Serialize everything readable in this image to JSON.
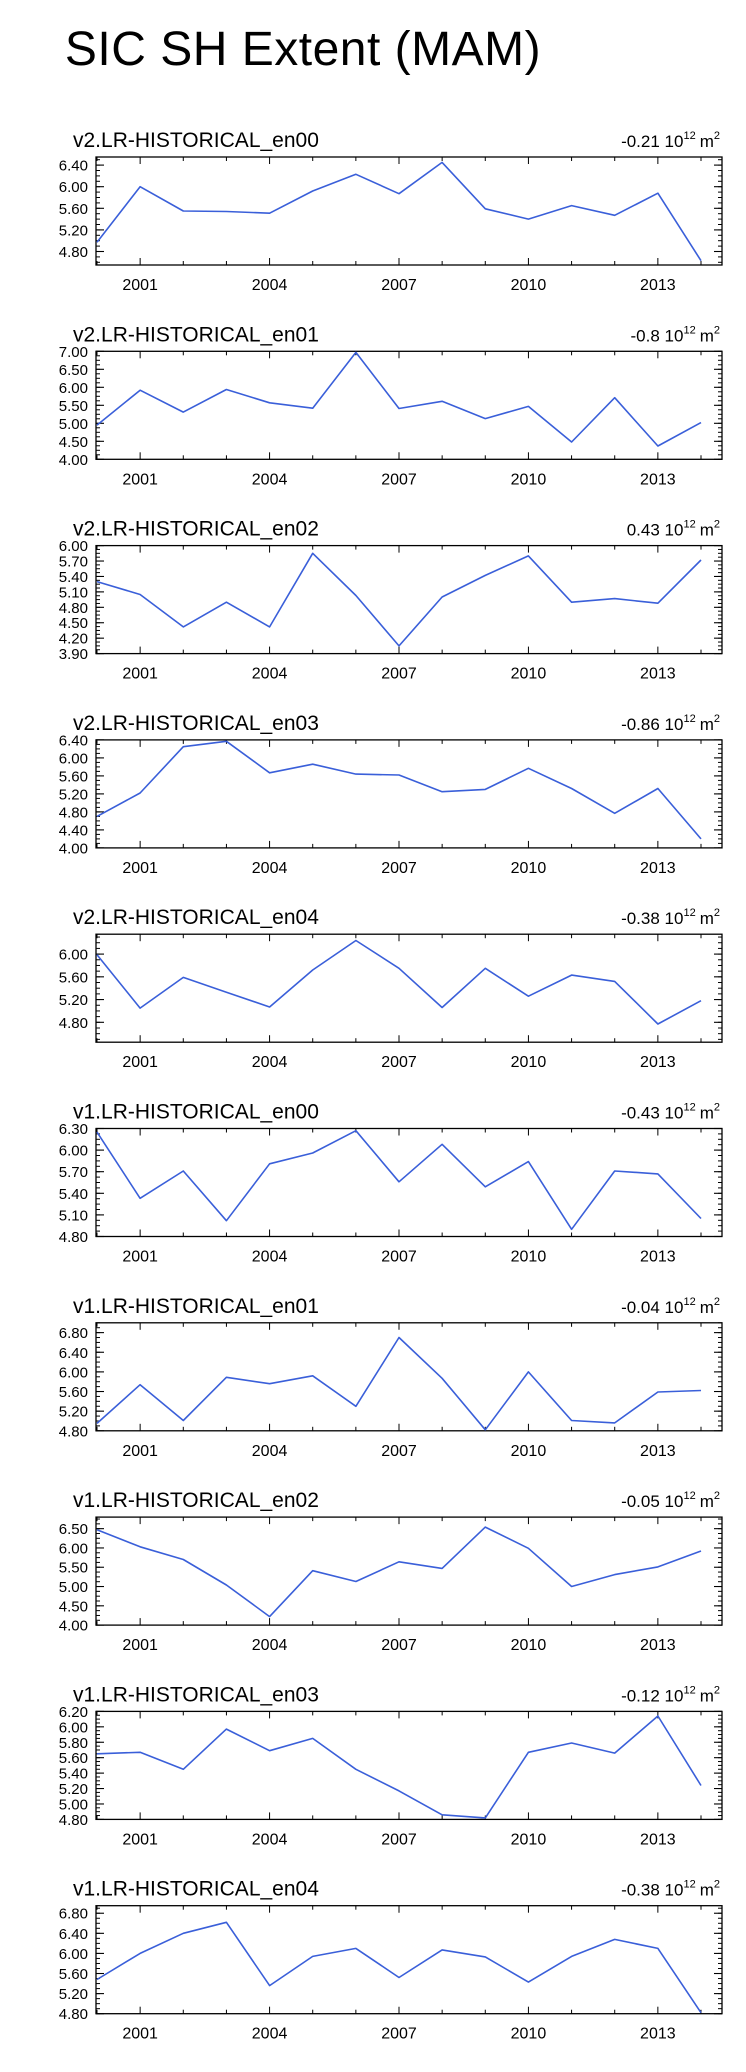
{
  "title": "SIC SH Extent (MAM)",
  "colors": {
    "line": "#3a5fd9",
    "axis": "#000000"
  },
  "years": [
    2000,
    2001,
    2002,
    2003,
    2004,
    2005,
    2006,
    2007,
    2008,
    2009,
    2010,
    2011,
    2012,
    2013,
    2014
  ],
  "x_ticks": [
    "2001",
    "2004",
    "2007",
    "2010",
    "2013"
  ],
  "trend_unit_base": "10",
  "trend_unit_exp": "12",
  "trend_unit_suffix": "m",
  "trend_unit_suffix_exp": "2",
  "chart_data": [
    {
      "type": "line",
      "title": "v2.LR-HISTORICAL_en00",
      "trend": "-0.21",
      "ylim": [
        4.55,
        6.55
      ],
      "yticks": [
        "4.80",
        "5.20",
        "5.60",
        "6.00",
        "6.40"
      ],
      "values": [
        4.97,
        6.0,
        5.55,
        5.54,
        5.51,
        5.92,
        6.23,
        5.87,
        6.45,
        5.59,
        5.4,
        5.65,
        5.47,
        5.88,
        4.63
      ]
    },
    {
      "type": "line",
      "title": "v2.LR-HISTORICAL_en01",
      "trend": "-0.8",
      "ylim": [
        4.0,
        7.0
      ],
      "yticks": [
        "4.00",
        "4.50",
        "5.00",
        "5.50",
        "6.00",
        "6.50",
        "7.00"
      ],
      "values": [
        4.95,
        5.92,
        5.31,
        5.94,
        5.57,
        5.42,
        6.97,
        5.41,
        5.61,
        5.13,
        5.47,
        4.48,
        5.71,
        4.37,
        5.02
      ]
    },
    {
      "type": "line",
      "title": "v2.LR-HISTORICAL_en02",
      "trend": "0.43",
      "ylim": [
        3.9,
        6.0
      ],
      "yticks": [
        "3.90",
        "4.20",
        "4.50",
        "4.80",
        "5.10",
        "5.40",
        "5.70",
        "6.00"
      ],
      "values": [
        5.3,
        5.05,
        4.42,
        4.9,
        4.42,
        5.85,
        5.03,
        4.05,
        5.0,
        5.42,
        5.8,
        4.9,
        4.97,
        4.88,
        5.72
      ]
    },
    {
      "type": "line",
      "title": "v2.LR-HISTORICAL_en03",
      "trend": "-0.86",
      "ylim": [
        4.0,
        6.4
      ],
      "yticks": [
        "4.00",
        "4.40",
        "4.80",
        "5.20",
        "5.60",
        "6.00",
        "6.40"
      ],
      "values": [
        4.7,
        5.22,
        6.25,
        6.37,
        5.67,
        5.86,
        5.64,
        5.62,
        5.25,
        5.3,
        5.77,
        5.32,
        4.77,
        5.32,
        4.2
      ]
    },
    {
      "type": "line",
      "title": "v2.LR-HISTORICAL_en04",
      "trend": "-0.38",
      "ylim": [
        4.45,
        6.35
      ],
      "yticks": [
        "4.80",
        "5.20",
        "5.60",
        "6.00"
      ],
      "values": [
        5.99,
        5.05,
        5.59,
        5.33,
        5.07,
        5.72,
        6.24,
        5.75,
        5.06,
        5.75,
        5.26,
        5.63,
        5.52,
        4.77,
        5.18
      ]
    },
    {
      "type": "line",
      "title": "v1.LR-HISTORICAL_en00",
      "trend": "-0.43",
      "ylim": [
        4.8,
        6.3
      ],
      "yticks": [
        "4.80",
        "5.10",
        "5.40",
        "5.70",
        "6.00",
        "6.30"
      ],
      "values": [
        6.25,
        5.33,
        5.71,
        5.02,
        5.81,
        5.96,
        6.27,
        5.56,
        6.08,
        5.49,
        5.84,
        4.9,
        5.71,
        5.67,
        5.05
      ]
    },
    {
      "type": "line",
      "title": "v1.LR-HISTORICAL_en01",
      "trend": "-0.04",
      "ylim": [
        4.8,
        7.0
      ],
      "yticks": [
        "4.80",
        "5.20",
        "5.60",
        "6.00",
        "6.40",
        "6.80"
      ],
      "values": [
        4.95,
        5.74,
        5.01,
        5.89,
        5.76,
        5.92,
        5.3,
        6.7,
        5.87,
        4.82,
        6.0,
        5.01,
        4.96,
        5.59,
        5.62
      ]
    },
    {
      "type": "line",
      "title": "v1.LR-HISTORICAL_en02",
      "trend": "-0.05",
      "ylim": [
        4.0,
        6.8
      ],
      "yticks": [
        "4.00",
        "4.50",
        "5.00",
        "5.50",
        "6.00",
        "6.50"
      ],
      "values": [
        6.47,
        6.03,
        5.7,
        5.04,
        4.22,
        5.41,
        5.13,
        5.64,
        5.47,
        6.54,
        5.99,
        5.0,
        5.31,
        5.51,
        5.92
      ]
    },
    {
      "type": "line",
      "title": "v1.LR-HISTORICAL_en03",
      "trend": "-0.12",
      "ylim": [
        4.8,
        6.2
      ],
      "yticks": [
        "4.80",
        "5.00",
        "5.20",
        "5.40",
        "5.60",
        "5.80",
        "6.00",
        "6.20"
      ],
      "values": [
        5.65,
        5.67,
        5.45,
        5.97,
        5.69,
        5.85,
        5.45,
        5.17,
        4.86,
        4.82,
        5.67,
        5.79,
        5.66,
        6.14,
        5.24
      ]
    },
    {
      "type": "line",
      "title": "v1.LR-HISTORICAL_en04",
      "trend": "-0.38",
      "ylim": [
        4.8,
        6.95
      ],
      "yticks": [
        "4.80",
        "5.20",
        "5.60",
        "6.00",
        "6.40",
        "6.80"
      ],
      "values": [
        5.48,
        6.0,
        6.4,
        6.62,
        5.36,
        5.94,
        6.1,
        5.52,
        6.07,
        5.93,
        5.43,
        5.94,
        6.28,
        6.1,
        4.82
      ]
    }
  ]
}
